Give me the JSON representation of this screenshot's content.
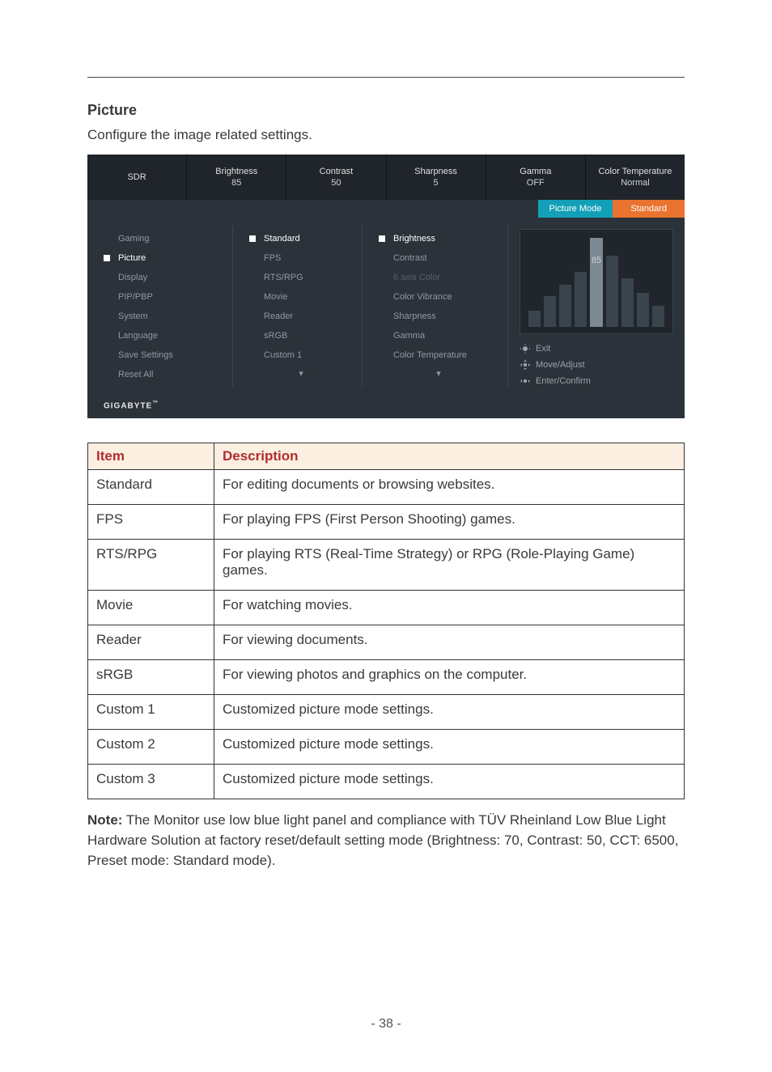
{
  "section": {
    "title": "Picture",
    "subtitle": "Configure the image related settings."
  },
  "osd": {
    "top": [
      {
        "label": "SDR",
        "value": ""
      },
      {
        "label": "Brightness",
        "value": "85"
      },
      {
        "label": "Contrast",
        "value": "50"
      },
      {
        "label": "Sharpness",
        "value": "5"
      },
      {
        "label": "Gamma",
        "value": "OFF"
      },
      {
        "label": "Color Temperature",
        "value": "Normal"
      }
    ],
    "pill": {
      "key": "Picture Mode",
      "value": "Standard"
    },
    "menu1": [
      {
        "label": "Gaming",
        "active": false
      },
      {
        "label": "Picture",
        "active": true
      },
      {
        "label": "Display",
        "active": false
      },
      {
        "label": "PIP/PBP",
        "active": false
      },
      {
        "label": "System",
        "active": false
      },
      {
        "label": "Language",
        "active": false
      },
      {
        "label": "Save Settings",
        "active": false
      },
      {
        "label": "Reset All",
        "active": false
      }
    ],
    "menu2": [
      {
        "label": "Standard",
        "active": true
      },
      {
        "label": "FPS",
        "active": false
      },
      {
        "label": "RTS/RPG",
        "active": false
      },
      {
        "label": "Movie",
        "active": false
      },
      {
        "label": "Reader",
        "active": false
      },
      {
        "label": "sRGB",
        "active": false
      },
      {
        "label": "Custom 1",
        "active": false
      }
    ],
    "menu3": [
      {
        "label": "Brightness",
        "active": true,
        "dim": false
      },
      {
        "label": "Contrast",
        "active": false,
        "dim": false
      },
      {
        "label": "6 axis Color",
        "active": false,
        "dim": true
      },
      {
        "label": "Color Vibrance",
        "active": false,
        "dim": false
      },
      {
        "label": "Sharpness",
        "active": false,
        "dim": false
      },
      {
        "label": "Gamma",
        "active": false,
        "dim": false
      },
      {
        "label": "Color Temperature",
        "active": false,
        "dim": false
      }
    ],
    "preview": {
      "bars": [
        20,
        38,
        52,
        68,
        110,
        88,
        60,
        42,
        26
      ],
      "value": "85"
    },
    "hints": [
      "Exit",
      "Move/Adjust",
      "Enter/Confirm"
    ],
    "footerLogo": "GIGABYTE"
  },
  "table": {
    "headers": [
      "Item",
      "Description"
    ],
    "rows": [
      [
        "Standard",
        "For editing documents or browsing websites."
      ],
      [
        "FPS",
        "For playing FPS (First Person Shooting) games."
      ],
      [
        "RTS/RPG",
        "For playing RTS (Real-Time Strategy) or RPG (Role-Playing Game) games."
      ],
      [
        "Movie",
        "For watching movies."
      ],
      [
        "Reader",
        "For viewing documents."
      ],
      [
        "sRGB",
        "For viewing photos and graphics on the computer."
      ],
      [
        "Custom 1",
        "Customized picture mode settings."
      ],
      [
        "Custom 2",
        "Customized picture mode settings."
      ],
      [
        "Custom 3",
        "Customized picture mode settings."
      ]
    ]
  },
  "note": {
    "prefix": "Note:",
    "text": " The Monitor use low blue light panel and compliance with TÜV Rheinland Low Blue Light Hardware Solution at factory reset/default setting mode (Brightness: 70, Contrast: 50, CCT: 6500, Preset mode: Standard mode)."
  },
  "pageNumber": "- 38 -"
}
